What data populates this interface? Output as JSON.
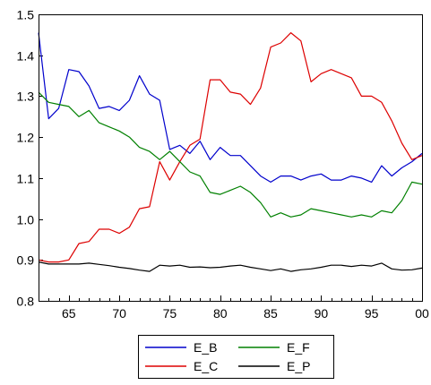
{
  "chart_data": {
    "type": "line",
    "title": "",
    "xlabel": "",
    "ylabel": "",
    "xlim": [
      1962,
      2000
    ],
    "ylim": [
      0.8,
      1.5
    ],
    "x_ticks": [
      1965,
      1970,
      1975,
      1980,
      1985,
      1990,
      1995,
      2000
    ],
    "x_tick_labels": [
      "65",
      "70",
      "75",
      "80",
      "85",
      "90",
      "95",
      "00"
    ],
    "y_ticks": [
      0.8,
      0.9,
      1.0,
      1.1,
      1.2,
      1.3,
      1.4,
      1.5
    ],
    "y_tick_labels": [
      "0.8",
      "0.9",
      "1.0",
      "1.1",
      "1.2",
      "1.3",
      "1.4",
      "1.5"
    ],
    "grid": false,
    "legend_position": "bottom-center",
    "x": [
      1962,
      1963,
      1964,
      1965,
      1966,
      1967,
      1968,
      1969,
      1970,
      1971,
      1972,
      1973,
      1974,
      1975,
      1976,
      1977,
      1978,
      1979,
      1980,
      1981,
      1982,
      1983,
      1984,
      1985,
      1986,
      1987,
      1988,
      1989,
      1990,
      1991,
      1992,
      1993,
      1994,
      1995,
      1996,
      1997,
      1998,
      1999,
      2000
    ],
    "series": [
      {
        "name": "E_B",
        "color": "#0000cc",
        "values": [
          1.455,
          1.245,
          1.27,
          1.365,
          1.36,
          1.325,
          1.27,
          1.275,
          1.265,
          1.29,
          1.35,
          1.305,
          1.29,
          1.17,
          1.18,
          1.16,
          1.19,
          1.145,
          1.175,
          1.155,
          1.155,
          1.13,
          1.105,
          1.09,
          1.105,
          1.105,
          1.095,
          1.105,
          1.11,
          1.095,
          1.095,
          1.105,
          1.1,
          1.09,
          1.13,
          1.105,
          1.125,
          1.14,
          1.16
        ]
      },
      {
        "name": "E_C",
        "color": "#dd0000",
        "values": [
          0.9,
          0.895,
          0.895,
          0.9,
          0.94,
          0.945,
          0.975,
          0.975,
          0.965,
          0.98,
          1.025,
          1.03,
          1.14,
          1.095,
          1.14,
          1.18,
          1.195,
          1.34,
          1.34,
          1.31,
          1.305,
          1.28,
          1.32,
          1.42,
          1.43,
          1.455,
          1.435,
          1.335,
          1.355,
          1.365,
          1.355,
          1.345,
          1.3,
          1.3,
          1.285,
          1.24,
          1.185,
          1.145,
          1.155
        ]
      },
      {
        "name": "E_F",
        "color": "#008000",
        "values": [
          1.31,
          1.285,
          1.28,
          1.275,
          1.25,
          1.265,
          1.235,
          1.225,
          1.215,
          1.2,
          1.175,
          1.165,
          1.145,
          1.165,
          1.14,
          1.115,
          1.105,
          1.065,
          1.06,
          1.07,
          1.08,
          1.065,
          1.04,
          1.005,
          1.015,
          1.005,
          1.01,
          1.025,
          1.02,
          1.015,
          1.01,
          1.005,
          1.01,
          1.005,
          1.02,
          1.015,
          1.045,
          1.09,
          1.085
        ]
      },
      {
        "name": "E_P",
        "color": "#000000",
        "values": [
          0.895,
          0.89,
          0.89,
          0.89,
          0.89,
          0.892,
          0.889,
          0.886,
          0.882,
          0.879,
          0.875,
          0.872,
          0.887,
          0.885,
          0.887,
          0.882,
          0.883,
          0.881,
          0.882,
          0.885,
          0.887,
          0.882,
          0.878,
          0.874,
          0.878,
          0.872,
          0.876,
          0.878,
          0.882,
          0.887,
          0.887,
          0.884,
          0.887,
          0.885,
          0.892,
          0.878,
          0.875,
          0.876,
          0.88
        ]
      }
    ],
    "legend_order": [
      "E_B",
      "E_F",
      "E_C",
      "E_P"
    ]
  }
}
